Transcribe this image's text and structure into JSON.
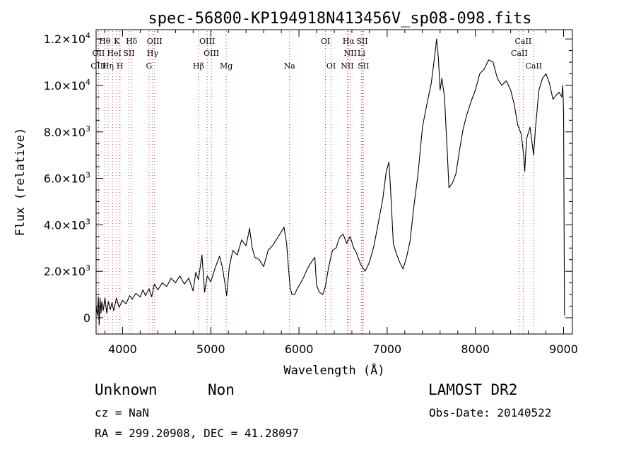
{
  "chart_data": {
    "type": "line",
    "title": "spec-56800-KP194918N413456V_sp08-098.fits",
    "xlabel": "Wavelength (Å)",
    "ylabel": "Flux (relative)",
    "xlim": [
      3700,
      9100
    ],
    "ylim": [
      -700,
      12400
    ],
    "x_ticks": [
      {
        "value": 4000,
        "label": "4000"
      },
      {
        "value": 5000,
        "label": "5000"
      },
      {
        "value": 6000,
        "label": "6000"
      },
      {
        "value": 7000,
        "label": "7000"
      },
      {
        "value": 8000,
        "label": "8000"
      },
      {
        "value": 9000,
        "label": "9000"
      }
    ],
    "y_ticks": [
      {
        "value": 0,
        "mant": "0",
        "exp": ""
      },
      {
        "value": 2000,
        "mant": "2.0×10",
        "exp": "3"
      },
      {
        "value": 4000,
        "mant": "4.0×10",
        "exp": "3"
      },
      {
        "value": 6000,
        "mant": "6.0×10",
        "exp": "3"
      },
      {
        "value": 8000,
        "mant": "8.0×10",
        "exp": "3"
      },
      {
        "value": 10000,
        "mant": "1.0×10",
        "exp": "4"
      },
      {
        "value": 12000,
        "mant": "1.2×10",
        "exp": "4"
      }
    ],
    "grid": false,
    "line_color": "#000000",
    "marker_color": "#d04040",
    "series": [
      {
        "points": [
          [
            3700,
            500
          ],
          [
            3715,
            100
          ],
          [
            3725,
            900
          ],
          [
            3735,
            -300
          ],
          [
            3745,
            850
          ],
          [
            3755,
            200
          ],
          [
            3765,
            700
          ],
          [
            3780,
            300
          ],
          [
            3800,
            850
          ],
          [
            3820,
            200
          ],
          [
            3840,
            700
          ],
          [
            3860,
            350
          ],
          [
            3880,
            650
          ],
          [
            3900,
            300
          ],
          [
            3930,
            850
          ],
          [
            3960,
            450
          ],
          [
            4000,
            750
          ],
          [
            4040,
            600
          ],
          [
            4080,
            950
          ],
          [
            4110,
            800
          ],
          [
            4150,
            1050
          ],
          [
            4200,
            900
          ],
          [
            4230,
            1200
          ],
          [
            4260,
            950
          ],
          [
            4300,
            1250
          ],
          [
            4330,
            900
          ],
          [
            4360,
            1450
          ],
          [
            4400,
            1200
          ],
          [
            4450,
            1500
          ],
          [
            4500,
            1350
          ],
          [
            4550,
            1700
          ],
          [
            4600,
            1500
          ],
          [
            4650,
            1800
          ],
          [
            4700,
            1450
          ],
          [
            4750,
            1700
          ],
          [
            4800,
            1150
          ],
          [
            4830,
            1950
          ],
          [
            4860,
            1650
          ],
          [
            4900,
            2700
          ],
          [
            4930,
            1100
          ],
          [
            4960,
            1800
          ],
          [
            5000,
            1550
          ],
          [
            5050,
            2150
          ],
          [
            5100,
            2650
          ],
          [
            5130,
            2200
          ],
          [
            5160,
            1500
          ],
          [
            5180,
            950
          ],
          [
            5210,
            2200
          ],
          [
            5250,
            2900
          ],
          [
            5300,
            2700
          ],
          [
            5350,
            3350
          ],
          [
            5400,
            3100
          ],
          [
            5440,
            3850
          ],
          [
            5470,
            3000
          ],
          [
            5500,
            2600
          ],
          [
            5550,
            2500
          ],
          [
            5600,
            2200
          ],
          [
            5650,
            2900
          ],
          [
            5700,
            3100
          ],
          [
            5750,
            3400
          ],
          [
            5800,
            3700
          ],
          [
            5830,
            3900
          ],
          [
            5860,
            3200
          ],
          [
            5880,
            2200
          ],
          [
            5900,
            1300
          ],
          [
            5920,
            1000
          ],
          [
            5950,
            1000
          ],
          [
            5980,
            1250
          ],
          [
            6020,
            1500
          ],
          [
            6060,
            1800
          ],
          [
            6100,
            2150
          ],
          [
            6150,
            2450
          ],
          [
            6180,
            2600
          ],
          [
            6200,
            1400
          ],
          [
            6230,
            1100
          ],
          [
            6270,
            1000
          ],
          [
            6300,
            1350
          ],
          [
            6340,
            2250
          ],
          [
            6380,
            2900
          ],
          [
            6420,
            3000
          ],
          [
            6460,
            3450
          ],
          [
            6500,
            3600
          ],
          [
            6540,
            3200
          ],
          [
            6580,
            3500
          ],
          [
            6620,
            3000
          ],
          [
            6650,
            2800
          ],
          [
            6700,
            2300
          ],
          [
            6750,
            2000
          ],
          [
            6800,
            2400
          ],
          [
            6850,
            3100
          ],
          [
            6900,
            4100
          ],
          [
            6950,
            5100
          ],
          [
            6990,
            6300
          ],
          [
            7020,
            6700
          ],
          [
            7040,
            5400
          ],
          [
            7070,
            3200
          ],
          [
            7100,
            2800
          ],
          [
            7140,
            2400
          ],
          [
            7180,
            2100
          ],
          [
            7220,
            2600
          ],
          [
            7260,
            3300
          ],
          [
            7300,
            4700
          ],
          [
            7350,
            6200
          ],
          [
            7400,
            8200
          ],
          [
            7450,
            9200
          ],
          [
            7500,
            10100
          ],
          [
            7540,
            11300
          ],
          [
            7560,
            12000
          ],
          [
            7580,
            11200
          ],
          [
            7600,
            9800
          ],
          [
            7620,
            10300
          ],
          [
            7650,
            9500
          ],
          [
            7680,
            7200
          ],
          [
            7700,
            5600
          ],
          [
            7740,
            5800
          ],
          [
            7780,
            6200
          ],
          [
            7820,
            7200
          ],
          [
            7860,
            8100
          ],
          [
            7900,
            8700
          ],
          [
            7950,
            9300
          ],
          [
            8000,
            9800
          ],
          [
            8050,
            10500
          ],
          [
            8100,
            10700
          ],
          [
            8150,
            11100
          ],
          [
            8200,
            11000
          ],
          [
            8250,
            10300
          ],
          [
            8300,
            10000
          ],
          [
            8350,
            10200
          ],
          [
            8400,
            9800
          ],
          [
            8440,
            9200
          ],
          [
            8480,
            8300
          ],
          [
            8520,
            7900
          ],
          [
            8550,
            6900
          ],
          [
            8560,
            6300
          ],
          [
            8580,
            7700
          ],
          [
            8620,
            8200
          ],
          [
            8660,
            7000
          ],
          [
            8680,
            8100
          ],
          [
            8720,
            9800
          ],
          [
            8760,
            10300
          ],
          [
            8800,
            10500
          ],
          [
            8840,
            10100
          ],
          [
            8880,
            9400
          ],
          [
            8920,
            9600
          ],
          [
            8950,
            9700
          ],
          [
            8980,
            9500
          ],
          [
            8990,
            10000
          ],
          [
            9000,
            8900
          ],
          [
            9010,
            100
          ]
        ]
      }
    ],
    "line_markers": [
      {
        "name": "Hθ",
        "wl": 3798,
        "row": 0
      },
      {
        "name": "K",
        "wl": 3934,
        "row": 0
      },
      {
        "name": "Hδ",
        "wl": 4102,
        "row": 0
      },
      {
        "name": "OIII",
        "wl": 4363,
        "row": 0
      },
      {
        "name": "OIII",
        "wl": 4959,
        "row": 0
      },
      {
        "name": "OI",
        "wl": 6300,
        "row": 0
      },
      {
        "name": "Hα",
        "wl": 6563,
        "row": 0
      },
      {
        "name": "SII",
        "wl": 6716,
        "row": 0
      },
      {
        "name": "CaII",
        "wl": 8542,
        "row": 0
      },
      {
        "name": "OII",
        "wl": 3727,
        "row": 1
      },
      {
        "name": "He",
        "wl": 3889,
        "row": 1
      },
      {
        "name": "I",
        "wl": 3970,
        "row": 1
      },
      {
        "name": "SII",
        "wl": 4072,
        "row": 1
      },
      {
        "name": "Hγ",
        "wl": 4340,
        "row": 1
      },
      {
        "name": "OIII",
        "wl": 5007,
        "row": 1
      },
      {
        "name": "NII",
        "wl": 6583,
        "row": 1
      },
      {
        "name": "Li",
        "wl": 6708,
        "row": 1
      },
      {
        "name": "CaII",
        "wl": 8498,
        "row": 1
      },
      {
        "name": "OIII",
        "wl": 3727,
        "row": 2
      },
      {
        "name": "Hη",
        "wl": 3835,
        "row": 2
      },
      {
        "name": "H",
        "wl": 3970,
        "row": 2
      },
      {
        "name": "G",
        "wl": 4300,
        "row": 2
      },
      {
        "name": "Hβ",
        "wl": 4861,
        "row": 2
      },
      {
        "name": "Mg",
        "wl": 5175,
        "row": 2
      },
      {
        "name": "Na",
        "wl": 5893,
        "row": 2
      },
      {
        "name": "OI",
        "wl": 6364,
        "row": 2
      },
      {
        "name": "NII",
        "wl": 6548,
        "row": 2
      },
      {
        "name": "SII",
        "wl": 6731,
        "row": 2
      },
      {
        "name": "CaII",
        "wl": 8662,
        "row": 2
      }
    ]
  },
  "info": {
    "class_label": "Unknown",
    "subclass_label": "Non",
    "survey": "LAMOST DR2",
    "cz": "cz = NaN",
    "obs_date": "Obs-Date: 20140522",
    "coords": "RA = 299.20908, DEC =  41.28097"
  }
}
